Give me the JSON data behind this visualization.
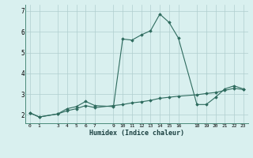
{
  "xlabel": "Humidex (Indice chaleur)",
  "line1_x": [
    0,
    1,
    3,
    4,
    5,
    6,
    7,
    9,
    10,
    11,
    12,
    13,
    14,
    15,
    16,
    18,
    19,
    20,
    21,
    22,
    23
  ],
  "line1_y": [
    2.1,
    1.9,
    2.05,
    2.3,
    2.4,
    2.65,
    2.45,
    2.4,
    5.65,
    5.6,
    5.85,
    6.05,
    6.85,
    6.45,
    5.7,
    2.5,
    2.5,
    2.85,
    3.25,
    3.4,
    3.25
  ],
  "line2_x": [
    0,
    1,
    3,
    4,
    5,
    6,
    7,
    9,
    10,
    11,
    12,
    13,
    14,
    15,
    16,
    18,
    19,
    20,
    21,
    22,
    23
  ],
  "line2_y": [
    2.1,
    1.9,
    2.05,
    2.2,
    2.3,
    2.45,
    2.35,
    2.45,
    2.5,
    2.58,
    2.63,
    2.7,
    2.8,
    2.85,
    2.9,
    2.97,
    3.03,
    3.08,
    3.18,
    3.28,
    3.22
  ],
  "line_color": "#2e6b5e",
  "bg_color": "#d9f0ef",
  "grid_color": "#b0cece",
  "xlim": [
    -0.5,
    23.5
  ],
  "ylim": [
    1.6,
    7.3
  ],
  "xticks": [
    0,
    1,
    3,
    4,
    5,
    6,
    7,
    9,
    10,
    11,
    12,
    13,
    14,
    15,
    16,
    18,
    19,
    20,
    21,
    22,
    23
  ],
  "yticks": [
    2,
    3,
    4,
    5,
    6,
    7
  ],
  "marker": "D",
  "markersize": 1.8,
  "linewidth": 0.8
}
